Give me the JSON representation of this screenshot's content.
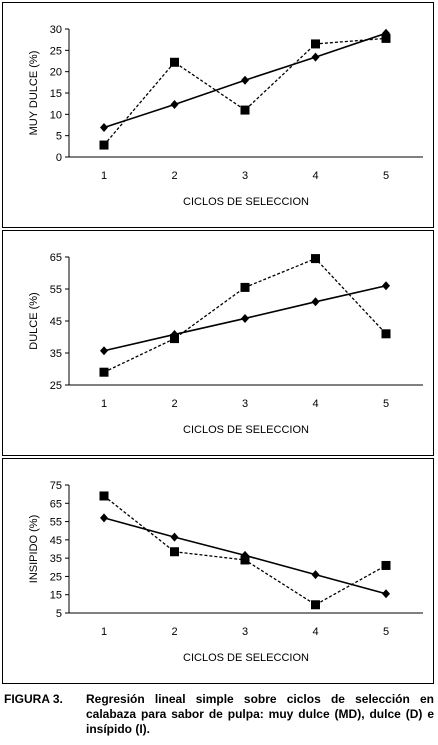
{
  "chart_data": [
    {
      "type": "line",
      "ylabel": "MUY DULCE (%)",
      "xlabel": "CICLOS DE SELECCION",
      "categories": [
        "1",
        "2",
        "3",
        "4",
        "5"
      ],
      "ylim": [
        0,
        30
      ],
      "yticks": [
        "0",
        "5",
        "10",
        "15",
        "20",
        "25",
        "30"
      ],
      "series": [
        {
          "style": "dashed-square",
          "values": [
            2.8,
            22.2,
            11.0,
            26.5,
            27.8
          ]
        },
        {
          "style": "solid-diamond",
          "values": [
            6.9,
            12.3,
            18.0,
            23.4,
            29.0
          ]
        }
      ]
    },
    {
      "type": "line",
      "ylabel": "DULCE (%)",
      "xlabel": "CICLOS DE SELECCION",
      "categories": [
        "1",
        "2",
        "3",
        "4",
        "5"
      ],
      "ylim": [
        25,
        65
      ],
      "yticks": [
        "25",
        "35",
        "45",
        "55",
        "65"
      ],
      "series": [
        {
          "style": "dashed-square",
          "values": [
            29.0,
            39.5,
            55.5,
            64.5,
            41.0
          ]
        },
        {
          "style": "solid-diamond",
          "values": [
            35.7,
            40.8,
            45.8,
            51.0,
            56.0
          ]
        }
      ]
    },
    {
      "type": "line",
      "ylabel": "INSIPIDO (%)",
      "xlabel": "CICLOS DE SELECCION",
      "categories": [
        "1",
        "2",
        "3",
        "4",
        "5"
      ],
      "ylim": [
        5,
        75
      ],
      "yticks": [
        "5",
        "15",
        "25",
        "35",
        "45",
        "55",
        "65",
        "75"
      ],
      "series": [
        {
          "style": "dashed-square",
          "values": [
            69.0,
            38.5,
            34.0,
            9.5,
            31.0
          ]
        },
        {
          "style": "solid-diamond",
          "values": [
            57.0,
            46.5,
            36.5,
            26.0,
            15.5
          ]
        }
      ]
    }
  ],
  "caption": {
    "label": "FIGURA 3.",
    "text": "Regresión lineal simple sobre ciclos de selección en calabaza para sabor de pulpa: muy dulce (MD), dulce (D) e insípido (I)."
  },
  "colors": {
    "line": "#000000",
    "background": "#ffffff"
  }
}
